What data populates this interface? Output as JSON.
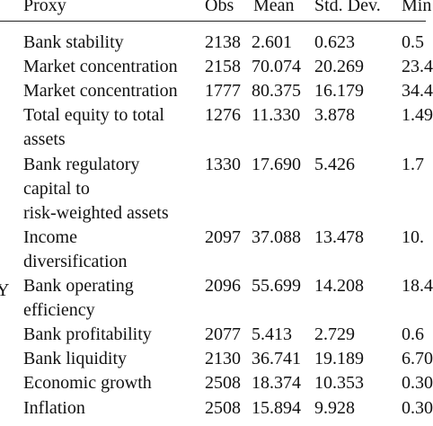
{
  "table": {
    "headers": {
      "proxy": "Proxy",
      "obs": "Obs",
      "mean": "Mean",
      "sd": "Std. Dev.",
      "min": "Min"
    },
    "edge_label": "Y",
    "rows": [
      {
        "proxy": [
          "Bank stability"
        ],
        "obs": "2138",
        "mean": "2.601",
        "sd": "0.623",
        "min": "0.5"
      },
      {
        "proxy": [
          "Market concentration"
        ],
        "obs": "2158",
        "mean": "70.074",
        "sd": "20.269",
        "min": "23.4"
      },
      {
        "proxy": [
          "Market concentration"
        ],
        "obs": "1777",
        "mean": "80.375",
        "sd": "16.179",
        "min": "34.4"
      },
      {
        "proxy": [
          "Total equity to total",
          "assets"
        ],
        "obs": "1276",
        "mean": "11.330",
        "sd": "3.878",
        "min": "1.49"
      },
      {
        "proxy": [
          "Bank regulatory",
          "capital to",
          "risk-weighted assets"
        ],
        "obs": "1330",
        "mean": "17.690",
        "sd": "5.426",
        "min": "1.7"
      },
      {
        "proxy": [
          "Income",
          "diversification"
        ],
        "obs": "2097",
        "mean": "37.088",
        "sd": "13.478",
        "min": "10."
      },
      {
        "proxy": [
          "Bank operating",
          "efficiency"
        ],
        "obs": "2096",
        "mean": "55.699",
        "sd": "14.208",
        "min": "18.4"
      },
      {
        "proxy": [
          "Bank profitability"
        ],
        "obs": "2077",
        "mean": "5.413",
        "sd": "2.729",
        "min": "0.6"
      },
      {
        "proxy": [
          "Bank liquidity"
        ],
        "obs": "2130",
        "mean": "36.741",
        "sd": "19.189",
        "min": "6.70"
      },
      {
        "proxy": [
          "Economic growth"
        ],
        "obs": "2508",
        "mean": "18.374",
        "sd": "10.353",
        "min": "0.30"
      },
      {
        "proxy": [
          "Inflation"
        ],
        "obs": "2508",
        "mean": "15.894",
        "sd": "9.928",
        "min": "0.30"
      }
    ]
  }
}
